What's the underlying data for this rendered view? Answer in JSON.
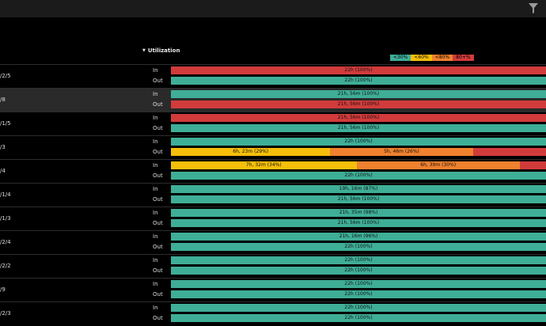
{
  "header": {
    "filter_icon": "filter-icon"
  },
  "section": {
    "title": "Utilization"
  },
  "legend": [
    {
      "label": "<30%",
      "color": "#3fae97"
    },
    {
      "label": "<60%",
      "color": "#f5bf0a"
    },
    {
      "label": "<80%",
      "color": "#f0812e"
    },
    {
      "label": "80+%",
      "color": "#d23b3b"
    }
  ],
  "colors": {
    "green": "#3fae97",
    "yellow": "#f5bf0a",
    "orange": "#f0812e",
    "red": "#d23b3b"
  },
  "labels": {
    "in": "In",
    "out": "Out"
  },
  "rows": [
    {
      "label": "/2/5",
      "in": [
        {
          "text": "22h (100%)",
          "color": "red",
          "share": 100
        }
      ],
      "out": [
        {
          "text": "22h (100%)",
          "color": "green",
          "share": 100
        }
      ]
    },
    {
      "label": "/8",
      "selected": true,
      "in": [
        {
          "text": "21h, 56m (100%)",
          "color": "green",
          "share": 100
        }
      ],
      "out": [
        {
          "text": "21h, 56m (100%)",
          "color": "red",
          "share": 100
        }
      ]
    },
    {
      "label": "/1/5",
      "in": [
        {
          "text": "21h, 56m (100%)",
          "color": "red",
          "share": 100
        }
      ],
      "out": [
        {
          "text": "21h, 56m (100%)",
          "color": "green",
          "share": 100
        }
      ]
    },
    {
      "label": "/3",
      "in": [
        {
          "text": "22h (100%)",
          "color": "green",
          "share": 100
        }
      ],
      "out": [
        {
          "text": "6h, 23m (29%)",
          "color": "yellow",
          "share": 42.5
        },
        {
          "text": "5h, 46m (26%)",
          "color": "orange",
          "share": 38
        },
        {
          "text": "",
          "color": "red",
          "share": 19.5
        }
      ]
    },
    {
      "label": "/4",
      "in": [
        {
          "text": "7h, 32m (34%)",
          "color": "yellow",
          "share": 49.5
        },
        {
          "text": "6h, 39m (30%)",
          "color": "orange",
          "share": 43.5
        },
        {
          "text": "",
          "color": "red",
          "share": 7
        }
      ],
      "out": [
        {
          "text": "22h (100%)",
          "color": "green",
          "share": 100
        }
      ]
    },
    {
      "label": "/1/4",
      "in": [
        {
          "text": "19h, 16m (87%)",
          "color": "green",
          "share": 100
        }
      ],
      "out": [
        {
          "text": "21h, 56m (100%)",
          "color": "green",
          "share": 100
        }
      ]
    },
    {
      "label": "/1/3",
      "in": [
        {
          "text": "21h, 35m (98%)",
          "color": "green",
          "share": 100
        }
      ],
      "out": [
        {
          "text": "21h, 56m (100%)",
          "color": "green",
          "share": 100
        }
      ]
    },
    {
      "label": "/2/4",
      "in": [
        {
          "text": "21h, 16m (96%)",
          "color": "green",
          "share": 100
        }
      ],
      "out": [
        {
          "text": "22h (100%)",
          "color": "green",
          "share": 100
        }
      ]
    },
    {
      "label": "/2/2",
      "in": [
        {
          "text": "22h (100%)",
          "color": "green",
          "share": 100
        }
      ],
      "out": [
        {
          "text": "22h (100%)",
          "color": "green",
          "share": 100
        }
      ]
    },
    {
      "label": "/9",
      "in": [
        {
          "text": "22h (100%)",
          "color": "green",
          "share": 100
        }
      ],
      "out": [
        {
          "text": "22h (100%)",
          "color": "green",
          "share": 100
        }
      ]
    },
    {
      "label": "/2/3",
      "in": [
        {
          "text": "22h (100%)",
          "color": "green",
          "share": 100
        }
      ],
      "out": [
        {
          "text": "22h (100%)",
          "color": "green",
          "share": 100
        }
      ]
    }
  ]
}
